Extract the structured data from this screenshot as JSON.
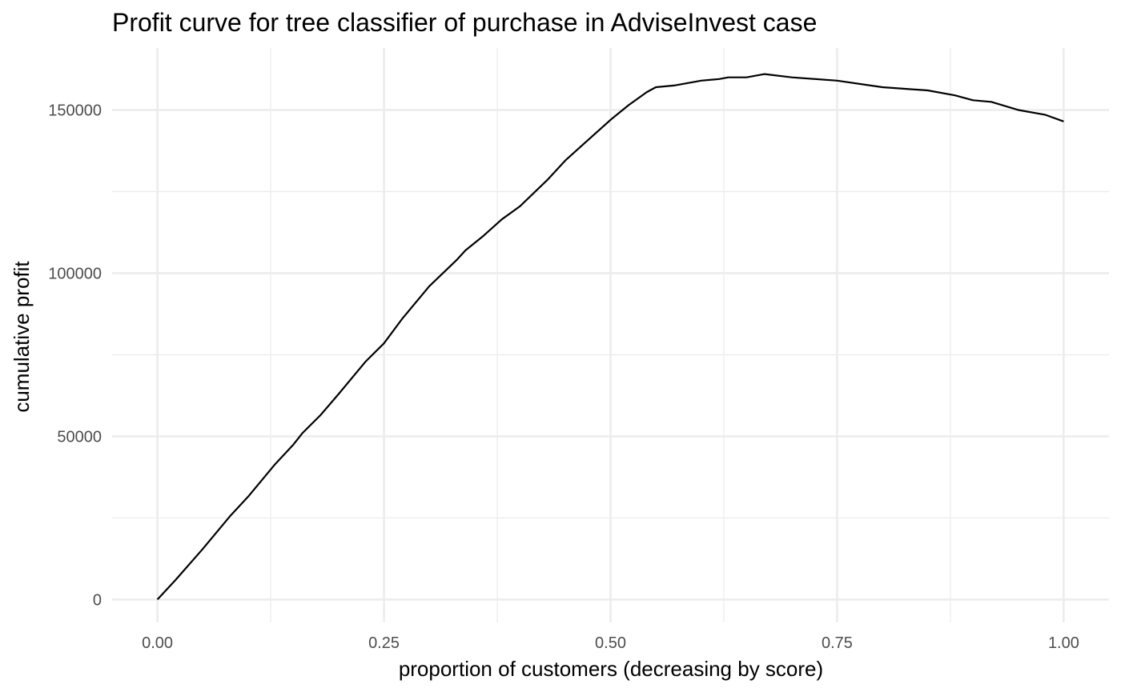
{
  "chart_data": {
    "type": "line",
    "title": "Profit curve for tree classifier of purchase in AdviseInvest case",
    "xlabel": "proportion of customers (decreasing by score)",
    "ylabel": "cumulative profit",
    "xlim": [
      -0.05,
      1.05
    ],
    "ylim": [
      -7000,
      169000
    ],
    "x_ticks": [
      0.0,
      0.25,
      0.5,
      0.75,
      1.0
    ],
    "x_tick_labels": [
      "0.00",
      "0.25",
      "0.50",
      "0.75",
      "1.00"
    ],
    "y_ticks": [
      0,
      50000,
      100000,
      150000
    ],
    "y_tick_labels": [
      "0",
      "50000",
      "100000",
      "150000"
    ],
    "grid": true,
    "line_color": "#000000",
    "grid_color": "#ebebeb",
    "series": [
      {
        "x": [
          0.0,
          0.02,
          0.05,
          0.08,
          0.1,
          0.13,
          0.15,
          0.16,
          0.18,
          0.2,
          0.23,
          0.25,
          0.27,
          0.3,
          0.33,
          0.34,
          0.36,
          0.38,
          0.4,
          0.43,
          0.45,
          0.47,
          0.5,
          0.52,
          0.54,
          0.55,
          0.57,
          0.6,
          0.62,
          0.63,
          0.65,
          0.67,
          0.7,
          0.75,
          0.8,
          0.85,
          0.88,
          0.9,
          0.92,
          0.95,
          0.98,
          1.0
        ],
        "y": [
          0,
          6000,
          15500,
          25500,
          31500,
          41500,
          47500,
          51000,
          56500,
          63000,
          73000,
          78500,
          86000,
          96000,
          104000,
          107000,
          111500,
          116500,
          120500,
          128500,
          134500,
          139500,
          147000,
          151500,
          155500,
          157000,
          157500,
          159000,
          159500,
          160000,
          160000,
          161000,
          160000,
          159000,
          157000,
          156000,
          154500,
          153000,
          152500,
          150000,
          148500,
          146500
        ]
      }
    ]
  }
}
